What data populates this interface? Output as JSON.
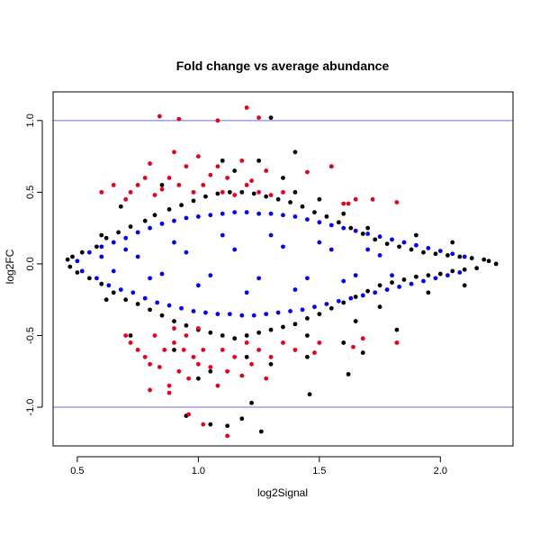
{
  "chart_data": {
    "type": "scatter",
    "title": "Fold change vs average abundance",
    "xlabel": "log2Signal",
    "ylabel": "log2FC",
    "xlim": [
      0.4,
      2.3
    ],
    "ylim": [
      -1.27,
      1.2
    ],
    "x_ticks": [
      0.5,
      1.0,
      1.5,
      2.0
    ],
    "x_tick_labels": [
      "0.5",
      "1.0",
      "1.5",
      "2.0"
    ],
    "y_ticks": [
      -1.0,
      -0.5,
      0.0,
      0.5,
      1.0
    ],
    "y_tick_labels": [
      "-1.0",
      "-0.5",
      "0.0",
      "0.5",
      "1.0"
    ],
    "grid": false,
    "reference_lines": {
      "y": [
        1.0,
        -1.0
      ],
      "color": "#6a6af0"
    },
    "series": [
      {
        "color": "#000000",
        "points": [
          [
            0.46,
            0.03
          ],
          [
            0.47,
            -0.02
          ],
          [
            0.48,
            0.05
          ],
          [
            0.5,
            -0.06
          ],
          [
            0.52,
            0.08
          ],
          [
            0.55,
            -0.1
          ],
          [
            0.58,
            0.12
          ],
          [
            0.6,
            -0.14
          ],
          [
            0.62,
            0.18
          ],
          [
            0.65,
            -0.2
          ],
          [
            0.67,
            0.22
          ],
          [
            0.7,
            -0.25
          ],
          [
            0.72,
            0.26
          ],
          [
            0.75,
            -0.28
          ],
          [
            0.78,
            0.3
          ],
          [
            0.8,
            -0.32
          ],
          [
            0.82,
            0.34
          ],
          [
            0.85,
            -0.36
          ],
          [
            0.88,
            0.38
          ],
          [
            0.9,
            -0.4
          ],
          [
            0.93,
            0.41
          ],
          [
            0.95,
            -0.43
          ],
          [
            0.98,
            0.44
          ],
          [
            1.0,
            -0.46
          ],
          [
            1.03,
            0.47
          ],
          [
            1.05,
            -0.48
          ],
          [
            1.08,
            0.49
          ],
          [
            1.1,
            -0.5
          ],
          [
            1.13,
            0.5
          ],
          [
            1.15,
            -0.52
          ],
          [
            1.18,
            0.5
          ],
          [
            1.2,
            -0.5
          ],
          [
            1.23,
            0.49
          ],
          [
            1.25,
            -0.48
          ],
          [
            1.28,
            0.47
          ],
          [
            1.3,
            -0.46
          ],
          [
            1.33,
            0.45
          ],
          [
            1.35,
            -0.44
          ],
          [
            1.38,
            0.43
          ],
          [
            1.4,
            -0.42
          ],
          [
            1.43,
            0.4
          ],
          [
            1.45,
            -0.38
          ],
          [
            1.48,
            0.36
          ],
          [
            1.5,
            -0.35
          ],
          [
            1.53,
            0.33
          ],
          [
            1.55,
            -0.31
          ],
          [
            1.58,
            0.29
          ],
          [
            1.6,
            -0.27
          ],
          [
            1.63,
            0.25
          ],
          [
            1.65,
            -0.23
          ],
          [
            1.68,
            0.21
          ],
          [
            1.7,
            -0.19
          ],
          [
            1.73,
            0.17
          ],
          [
            1.75,
            -0.15
          ],
          [
            1.78,
            0.14
          ],
          [
            1.8,
            -0.13
          ],
          [
            1.83,
            0.12
          ],
          [
            1.85,
            -0.11
          ],
          [
            1.88,
            0.1
          ],
          [
            1.9,
            -0.09
          ],
          [
            1.93,
            0.08
          ],
          [
            1.95,
            -0.08
          ],
          [
            1.98,
            0.07
          ],
          [
            2.0,
            -0.07
          ],
          [
            2.03,
            0.06
          ],
          [
            2.05,
            -0.05
          ],
          [
            2.08,
            0.05
          ],
          [
            2.1,
            -0.04
          ],
          [
            2.13,
            0.04
          ],
          [
            2.15,
            -0.03
          ],
          [
            2.18,
            0.03
          ],
          [
            2.2,
            0.02
          ],
          [
            2.23,
            0.0
          ],
          [
            1.3,
            1.02
          ],
          [
            1.22,
            -0.97
          ],
          [
            1.26,
            -1.17
          ],
          [
            1.18,
            -1.08
          ],
          [
            1.12,
            -1.13
          ],
          [
            1.05,
            -1.12
          ],
          [
            0.95,
            -1.06
          ],
          [
            1.46,
            -0.91
          ],
          [
            1.62,
            -0.77
          ],
          [
            1.68,
            -0.62
          ],
          [
            1.82,
            -0.46
          ],
          [
            1.4,
            0.78
          ],
          [
            1.55,
            0.68
          ],
          [
            1.45,
            -0.65
          ],
          [
            1.6,
            -0.55
          ],
          [
            0.68,
            0.4
          ],
          [
            0.72,
            -0.5
          ],
          [
            1.0,
            -0.8
          ],
          [
            1.05,
            -0.75
          ],
          [
            1.1,
            0.72
          ],
          [
            1.25,
            0.72
          ],
          [
            1.3,
            -0.7
          ],
          [
            1.35,
            0.6
          ],
          [
            1.5,
            0.45
          ],
          [
            1.7,
            0.25
          ],
          [
            1.75,
            -0.3
          ],
          [
            0.6,
            0.2
          ],
          [
            0.62,
            -0.25
          ],
          [
            0.85,
            0.55
          ],
          [
            0.9,
            -0.6
          ],
          [
            1.15,
            0.65
          ],
          [
            1.2,
            -0.65
          ],
          [
            1.4,
            0.5
          ],
          [
            1.45,
            -0.5
          ],
          [
            1.6,
            0.35
          ],
          [
            1.65,
            -0.4
          ],
          [
            1.9,
            0.2
          ],
          [
            1.95,
            -0.2
          ],
          [
            2.05,
            0.15
          ],
          [
            2.1,
            -0.15
          ]
        ]
      },
      {
        "color": "#0000ff",
        "points": [
          [
            0.5,
            0.02
          ],
          [
            0.52,
            -0.05
          ],
          [
            0.55,
            0.08
          ],
          [
            0.58,
            -0.1
          ],
          [
            0.6,
            0.12
          ],
          [
            0.63,
            -0.15
          ],
          [
            0.65,
            0.15
          ],
          [
            0.68,
            -0.18
          ],
          [
            0.7,
            0.18
          ],
          [
            0.73,
            -0.2
          ],
          [
            0.75,
            0.22
          ],
          [
            0.78,
            -0.24
          ],
          [
            0.8,
            0.25
          ],
          [
            0.83,
            -0.27
          ],
          [
            0.85,
            0.28
          ],
          [
            0.88,
            -0.29
          ],
          [
            0.9,
            0.3
          ],
          [
            0.93,
            -0.31
          ],
          [
            0.95,
            0.32
          ],
          [
            0.98,
            -0.33
          ],
          [
            1.0,
            0.33
          ],
          [
            1.03,
            -0.34
          ],
          [
            1.05,
            0.34
          ],
          [
            1.08,
            -0.35
          ],
          [
            1.1,
            0.35
          ],
          [
            1.13,
            -0.35
          ],
          [
            1.15,
            0.36
          ],
          [
            1.18,
            -0.36
          ],
          [
            1.2,
            0.36
          ],
          [
            1.23,
            -0.36
          ],
          [
            1.25,
            0.35
          ],
          [
            1.28,
            -0.35
          ],
          [
            1.3,
            0.35
          ],
          [
            1.33,
            -0.34
          ],
          [
            1.35,
            0.34
          ],
          [
            1.38,
            -0.33
          ],
          [
            1.4,
            0.33
          ],
          [
            1.43,
            -0.32
          ],
          [
            1.45,
            0.31
          ],
          [
            1.48,
            -0.3
          ],
          [
            1.5,
            0.29
          ],
          [
            1.53,
            -0.28
          ],
          [
            1.55,
            0.27
          ],
          [
            1.58,
            -0.26
          ],
          [
            1.6,
            0.25
          ],
          [
            1.63,
            -0.24
          ],
          [
            1.65,
            0.23
          ],
          [
            1.68,
            -0.22
          ],
          [
            1.7,
            0.21
          ],
          [
            1.73,
            -0.2
          ],
          [
            1.75,
            0.19
          ],
          [
            1.78,
            -0.18
          ],
          [
            1.8,
            0.17
          ],
          [
            1.83,
            -0.16
          ],
          [
            1.85,
            0.15
          ],
          [
            1.88,
            -0.14
          ],
          [
            1.9,
            0.13
          ],
          [
            1.93,
            -0.12
          ],
          [
            1.95,
            0.11
          ],
          [
            1.98,
            -0.1
          ],
          [
            2.0,
            0.09
          ],
          [
            2.03,
            -0.08
          ],
          [
            2.05,
            0.07
          ],
          [
            2.08,
            -0.06
          ],
          [
            2.1,
            0.05
          ],
          [
            0.7,
            0.1
          ],
          [
            0.8,
            -0.1
          ],
          [
            0.9,
            0.15
          ],
          [
            1.0,
            -0.15
          ],
          [
            1.1,
            0.2
          ],
          [
            1.2,
            -0.2
          ],
          [
            1.3,
            0.2
          ],
          [
            1.4,
            -0.18
          ],
          [
            1.5,
            0.15
          ],
          [
            1.6,
            -0.12
          ],
          [
            1.7,
            0.1
          ],
          [
            1.8,
            -0.08
          ],
          [
            0.6,
            0.05
          ],
          [
            0.75,
            0.05
          ],
          [
            0.95,
            0.08
          ],
          [
            1.15,
            0.1
          ],
          [
            1.35,
            0.12
          ],
          [
            1.55,
            0.1
          ],
          [
            1.75,
            0.06
          ],
          [
            0.65,
            -0.05
          ],
          [
            0.85,
            -0.07
          ],
          [
            1.05,
            -0.08
          ],
          [
            1.25,
            -0.1
          ],
          [
            1.45,
            -0.1
          ],
          [
            1.65,
            -0.08
          ]
        ]
      },
      {
        "color": "#e8001c",
        "points": [
          [
            0.84,
            1.03
          ],
          [
            0.92,
            1.01
          ],
          [
            1.08,
            1.0
          ],
          [
            1.2,
            1.09
          ],
          [
            1.25,
            1.02
          ],
          [
            0.7,
            0.45
          ],
          [
            0.72,
            0.5
          ],
          [
            0.75,
            0.55
          ],
          [
            0.78,
            0.6
          ],
          [
            0.8,
            0.7
          ],
          [
            0.82,
            0.48
          ],
          [
            0.85,
            0.52
          ],
          [
            0.88,
            0.6
          ],
          [
            0.9,
            0.78
          ],
          [
            0.92,
            0.55
          ],
          [
            0.95,
            0.68
          ],
          [
            0.98,
            0.5
          ],
          [
            1.0,
            0.75
          ],
          [
            1.02,
            0.55
          ],
          [
            1.05,
            0.62
          ],
          [
            1.08,
            0.68
          ],
          [
            1.1,
            0.5
          ],
          [
            1.12,
            0.6
          ],
          [
            1.15,
            0.48
          ],
          [
            1.18,
            0.72
          ],
          [
            1.2,
            0.55
          ],
          [
            1.22,
            0.58
          ],
          [
            1.25,
            0.5
          ],
          [
            1.28,
            0.65
          ],
          [
            1.3,
            0.48
          ],
          [
            1.35,
            0.5
          ],
          [
            1.45,
            0.64
          ],
          [
            1.55,
            0.68
          ],
          [
            1.6,
            0.42
          ],
          [
            1.62,
            0.42
          ],
          [
            1.65,
            0.45
          ],
          [
            1.72,
            0.45
          ],
          [
            1.82,
            0.43
          ],
          [
            0.6,
            0.5
          ],
          [
            0.65,
            0.55
          ],
          [
            0.7,
            -0.5
          ],
          [
            0.72,
            -0.55
          ],
          [
            0.75,
            -0.6
          ],
          [
            0.78,
            -0.65
          ],
          [
            0.8,
            -0.7
          ],
          [
            0.82,
            -0.5
          ],
          [
            0.84,
            -0.72
          ],
          [
            0.86,
            -0.6
          ],
          [
            0.88,
            -0.85
          ],
          [
            0.9,
            -0.55
          ],
          [
            0.92,
            -0.75
          ],
          [
            0.94,
            -0.6
          ],
          [
            0.96,
            -0.8
          ],
          [
            0.98,
            -0.65
          ],
          [
            1.0,
            -0.7
          ],
          [
            1.02,
            -0.6
          ],
          [
            1.05,
            -0.72
          ],
          [
            1.08,
            -0.85
          ],
          [
            1.1,
            -0.6
          ],
          [
            1.12,
            -0.75
          ],
          [
            1.15,
            -0.65
          ],
          [
            1.18,
            -0.78
          ],
          [
            1.2,
            -0.55
          ],
          [
            1.22,
            -0.7
          ],
          [
            1.25,
            -0.6
          ],
          [
            1.28,
            -0.8
          ],
          [
            1.3,
            -0.65
          ],
          [
            1.35,
            -0.55
          ],
          [
            1.4,
            -0.6
          ],
          [
            1.12,
            -1.2
          ],
          [
            1.02,
            -1.12
          ],
          [
            0.96,
            -1.05
          ],
          [
            0.88,
            -0.9
          ],
          [
            0.8,
            -0.88
          ],
          [
            1.48,
            -0.62
          ],
          [
            1.5,
            -0.55
          ],
          [
            1.64,
            -0.58
          ],
          [
            1.68,
            -0.52
          ],
          [
            1.82,
            -0.55
          ],
          [
            0.9,
            -0.45
          ],
          [
            0.95,
            -0.5
          ],
          [
            1.0,
            -0.45
          ]
        ]
      }
    ]
  }
}
